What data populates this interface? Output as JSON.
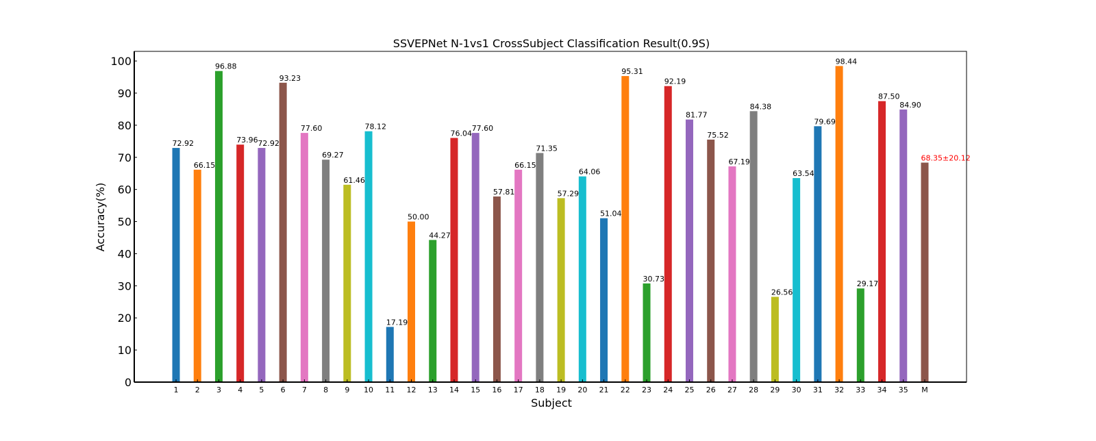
{
  "chart_data": {
    "type": "bar",
    "title": "SSVEPNet N-1vs1 CrossSubject Classification Result(0.9S)",
    "xlabel": "Subject",
    "ylabel": "Accuracy(%)",
    "ylim": [
      0,
      103
    ],
    "yticks": [
      0,
      10,
      20,
      30,
      40,
      50,
      60,
      70,
      80,
      90,
      100
    ],
    "grid": false,
    "categories": [
      "1",
      "2",
      "3",
      "4",
      "5",
      "6",
      "7",
      "8",
      "9",
      "10",
      "11",
      "12",
      "13",
      "14",
      "15",
      "16",
      "17",
      "18",
      "19",
      "20",
      "21",
      "22",
      "23",
      "24",
      "25",
      "26",
      "27",
      "28",
      "29",
      "30",
      "31",
      "32",
      "33",
      "34",
      "35",
      "M"
    ],
    "values": [
      72.92,
      66.15,
      96.88,
      73.96,
      72.92,
      93.23,
      77.6,
      69.27,
      61.46,
      78.12,
      17.19,
      50.0,
      44.27,
      76.04,
      77.6,
      57.81,
      66.15,
      71.35,
      57.29,
      64.06,
      51.04,
      95.31,
      30.73,
      92.19,
      81.77,
      75.52,
      67.19,
      84.38,
      26.56,
      63.54,
      79.69,
      98.44,
      29.17,
      87.5,
      84.9,
      68.35
    ],
    "data_labels": [
      "72.92",
      "66.15",
      "96.88",
      "73.96",
      "72.92",
      "93.23",
      "77.60",
      "69.27",
      "61.46",
      "78.12",
      "17.19",
      "50.00",
      "44.27",
      "76.04",
      "77.60",
      "57.81",
      "66.15",
      "71.35",
      "57.29",
      "64.06",
      "51.04",
      "95.31",
      "30.73",
      "92.19",
      "81.77",
      "75.52",
      "67.19",
      "84.38",
      "26.56",
      "63.54",
      "79.69",
      "98.44",
      "29.17",
      "87.50",
      "84.90",
      "68.35±20.12"
    ],
    "colors": [
      "#1f77b4",
      "#ff7f0e",
      "#2ca02c",
      "#d62728",
      "#9467bd",
      "#8c564b",
      "#e377c2",
      "#7f7f7f",
      "#bcbd22",
      "#17becf"
    ],
    "mean_label_color": "#ff0000"
  }
}
